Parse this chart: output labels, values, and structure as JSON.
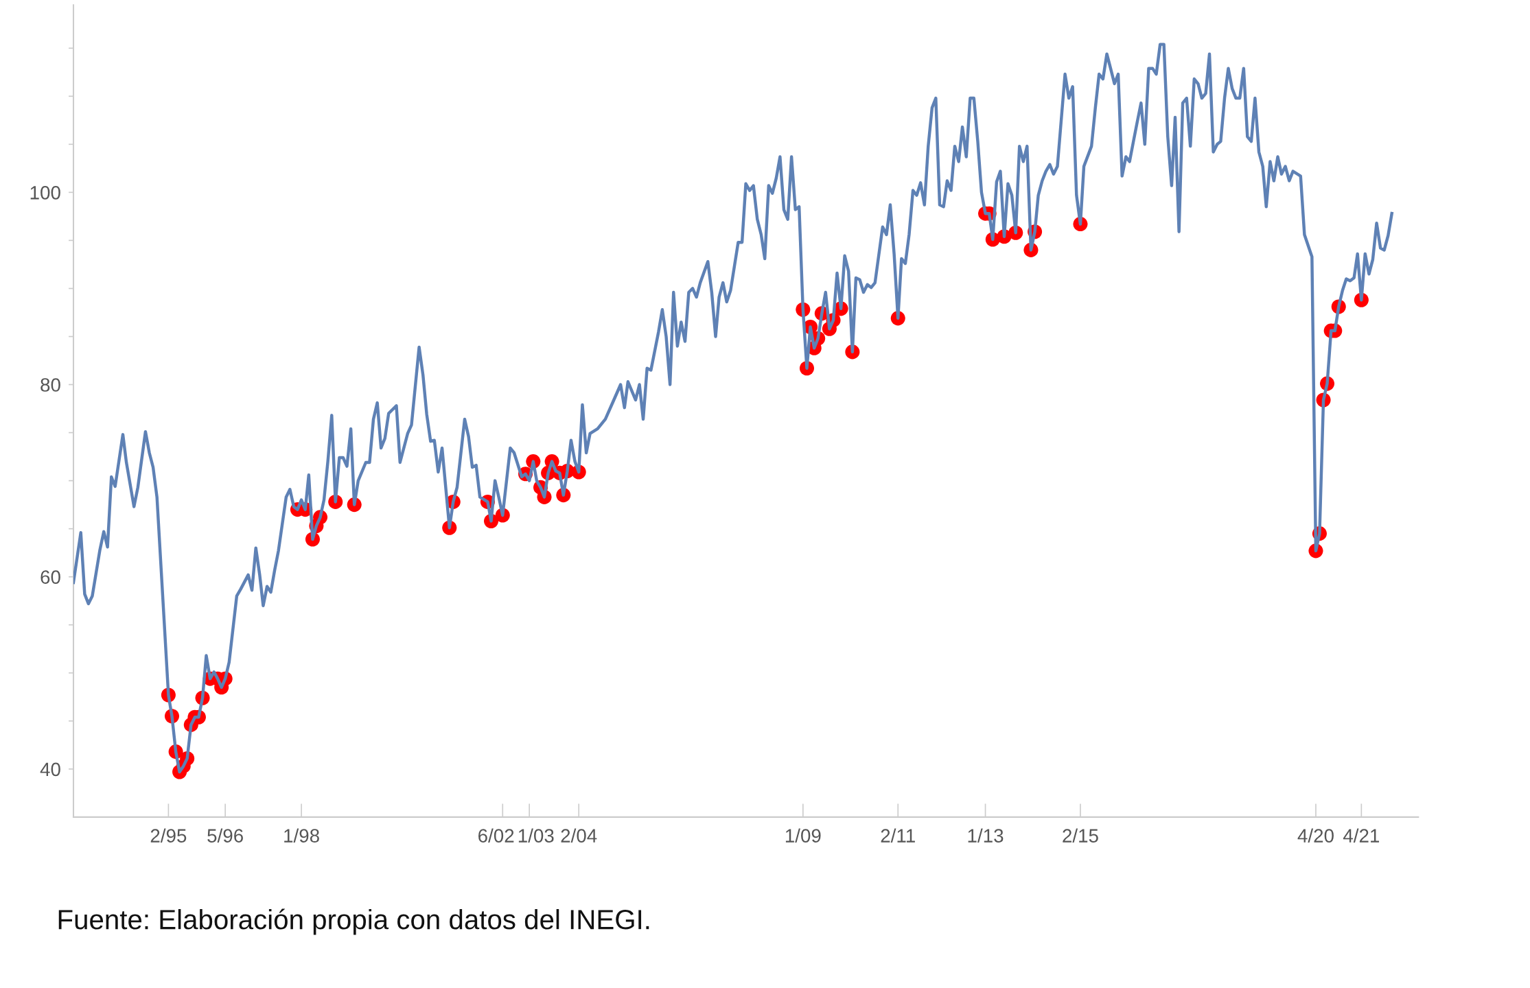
{
  "chart_data": {
    "type": "line",
    "xlim": [
      "1993-01",
      "2022-07"
    ],
    "ylim": [
      35,
      119.5
    ],
    "xticks": [
      {
        "value": "1995-02",
        "label": "2/95"
      },
      {
        "value": "1996-05",
        "label": "5/96"
      },
      {
        "value": "1998-01",
        "label": "1/98"
      },
      {
        "value": "2002-06",
        "label": "6/02"
      },
      {
        "value": "2003-01",
        "label": "1/03"
      },
      {
        "value": "2004-02",
        "label": "2/04"
      },
      {
        "value": "2009-01",
        "label": "1/09"
      },
      {
        "value": "2011-02",
        "label": "2/11"
      },
      {
        "value": "2013-01",
        "label": "1/13"
      },
      {
        "value": "2015-02",
        "label": "2/15"
      },
      {
        "value": "2020-04",
        "label": "4/20"
      },
      {
        "value": "2021-04",
        "label": "4/21"
      }
    ],
    "yticks": [
      40,
      {
        "value": 45,
        "label": null
      },
      {
        "value": 50,
        "label": null
      },
      {
        "value": 55,
        "label": null
      },
      60,
      {
        "value": 65,
        "label": null
      },
      {
        "value": 70,
        "label": null
      },
      {
        "value": 75,
        "label": null
      },
      80,
      {
        "value": 85,
        "label": null
      },
      {
        "value": 90,
        "label": null
      },
      {
        "value": 95,
        "label": null
      },
      100,
      {
        "value": 105,
        "label": null
      },
      {
        "value": 110,
        "label": null
      },
      {
        "value": 115,
        "label": null
      }
    ],
    "grid": false,
    "legend": false,
    "annotations": [
      "Fuente: Elaboración propia con datos del INEGI."
    ],
    "series": [
      {
        "color": "#5e81b5",
        "line_style": "solid",
        "x": [
          "1993-01",
          "1993-03",
          "1993-04",
          "1993-05",
          "1993-06",
          "1993-08",
          "1993-09",
          "1993-10",
          "1993-11",
          "1993-12",
          "1994-02",
          "1994-03",
          "1994-05",
          "1994-06",
          "1994-08",
          "1994-09",
          "1994-10",
          "1994-11",
          "1995-02",
          "1995-03",
          "1995-04",
          "1995-05",
          "1995-06",
          "1995-07",
          "1995-08",
          "1995-09",
          "1995-10",
          "1995-11",
          "1995-12",
          "1996-01",
          "1996-02",
          "1996-03",
          "1996-04",
          "1996-05",
          "1996-06",
          "1996-08",
          "1996-09",
          "1996-11",
          "1996-12",
          "1997-01",
          "1997-02",
          "1997-03",
          "1997-04",
          "1997-05",
          "1997-06",
          "1997-07",
          "1997-09",
          "1997-10",
          "1997-11",
          "1997-12",
          "1998-01",
          "1998-02",
          "1998-03",
          "1998-04",
          "1998-05",
          "1998-06",
          "1998-07",
          "1998-08",
          "1998-09",
          "1998-10",
          "1998-11",
          "1998-12",
          "1999-01",
          "1999-02",
          "1999-03",
          "1999-04",
          "1999-06",
          "1999-07",
          "1999-08",
          "1999-09",
          "1999-10",
          "1999-11",
          "1999-12",
          "2000-02",
          "2000-03",
          "2000-05",
          "2000-06",
          "2000-08",
          "2000-09",
          "2000-10",
          "2000-11",
          "2000-12",
          "2001-01",
          "2001-02",
          "2001-04",
          "2001-05",
          "2001-06",
          "2001-08",
          "2001-09",
          "2001-10",
          "2001-11",
          "2001-12",
          "2002-02",
          "2002-03",
          "2002-04",
          "2002-05",
          "2002-06",
          "2002-08",
          "2002-09",
          "2002-11",
          "2002-12",
          "2003-01",
          "2003-02",
          "2003-03",
          "2003-04",
          "2003-05",
          "2003-06",
          "2003-07",
          "2003-08",
          "2003-09",
          "2003-10",
          "2003-11",
          "2003-12",
          "2004-01",
          "2004-02",
          "2004-03",
          "2004-04",
          "2004-05",
          "2004-07",
          "2004-09",
          "2004-11",
          "2005-01",
          "2005-02",
          "2005-03",
          "2005-05",
          "2005-06",
          "2005-07",
          "2005-08",
          "2005-09",
          "2005-11",
          "2005-12",
          "2006-01",
          "2006-02",
          "2006-03",
          "2006-04",
          "2006-05",
          "2006-06",
          "2006-07",
          "2006-08",
          "2006-09",
          "2006-10",
          "2006-12",
          "2007-01",
          "2007-02",
          "2007-03",
          "2007-04",
          "2007-05",
          "2007-06",
          "2007-08",
          "2007-09",
          "2007-10",
          "2007-11",
          "2007-12",
          "2008-01",
          "2008-02",
          "2008-03",
          "2008-04",
          "2008-05",
          "2008-06",
          "2008-07",
          "2008-08",
          "2008-09",
          "2008-10",
          "2008-11",
          "2008-12",
          "2009-01",
          "2009-02",
          "2009-03",
          "2009-04",
          "2009-05",
          "2009-06",
          "2009-07",
          "2009-08",
          "2009-09",
          "2009-10",
          "2009-11",
          "2009-12",
          "2010-01",
          "2010-02",
          "2010-03",
          "2010-04",
          "2010-05",
          "2010-06",
          "2010-07",
          "2010-08",
          "2010-10",
          "2010-11",
          "2010-12",
          "2011-01",
          "2011-02",
          "2011-03",
          "2011-04",
          "2011-05",
          "2011-06",
          "2011-07",
          "2011-08",
          "2011-09",
          "2011-10",
          "2011-11",
          "2011-12",
          "2012-01",
          "2012-02",
          "2012-03",
          "2012-04",
          "2012-05",
          "2012-06",
          "2012-07",
          "2012-08",
          "2012-09",
          "2012-10",
          "2012-11",
          "2012-12",
          "2013-01",
          "2013-02",
          "2013-03",
          "2013-04",
          "2013-05",
          "2013-06",
          "2013-07",
          "2013-08",
          "2013-09",
          "2013-10",
          "2013-11",
          "2013-12",
          "2014-01",
          "2014-02",
          "2014-03",
          "2014-04",
          "2014-05",
          "2014-06",
          "2014-07",
          "2014-08",
          "2014-10",
          "2014-11",
          "2014-12",
          "2015-01",
          "2015-02",
          "2015-03",
          "2015-05",
          "2015-06",
          "2015-07",
          "2015-08",
          "2015-09",
          "2015-10",
          "2015-11",
          "2015-12",
          "2016-01",
          "2016-02",
          "2016-03",
          "2016-04",
          "2016-05",
          "2016-06",
          "2016-07",
          "2016-08",
          "2016-09",
          "2016-10",
          "2016-11",
          "2016-12",
          "2017-01",
          "2017-02",
          "2017-03",
          "2017-04",
          "2017-05",
          "2017-06",
          "2017-07",
          "2017-08",
          "2017-09",
          "2017-10",
          "2017-11",
          "2017-12",
          "2018-01",
          "2018-02",
          "2018-03",
          "2018-04",
          "2018-05",
          "2018-06",
          "2018-07",
          "2018-08",
          "2018-09",
          "2018-10",
          "2018-11",
          "2018-12",
          "2019-01",
          "2019-02",
          "2019-03",
          "2019-04",
          "2019-05",
          "2019-06",
          "2019-07",
          "2019-08",
          "2019-09",
          "2019-10",
          "2019-12",
          "2020-01",
          "2020-03",
          "2020-04",
          "2020-05",
          "2020-06",
          "2020-07",
          "2020-08",
          "2020-09",
          "2020-10",
          "2020-11",
          "2020-12",
          "2021-01",
          "2021-02",
          "2021-03",
          "2021-04",
          "2021-05",
          "2021-06",
          "2021-07",
          "2021-08",
          "2021-09",
          "2021-10",
          "2021-11",
          "2021-12"
        ],
        "values": [
          59.4,
          64.6,
          58.2,
          57.2,
          58.0,
          62.8,
          64.7,
          63.1,
          70.4,
          69.4,
          74.8,
          71.9,
          67.3,
          69.3,
          75.1,
          72.9,
          71.4,
          68.3,
          47.7,
          45.5,
          41.8,
          39.7,
          40.3,
          41.1,
          44.6,
          45.4,
          45.4,
          47.4,
          51.8,
          49.4,
          50.1,
          49.4,
          48.5,
          49.4,
          51.1,
          58.0,
          58.7,
          60.2,
          58.6,
          63.0,
          60.2,
          57.0,
          59.0,
          58.4,
          60.7,
          62.7,
          68.3,
          69.1,
          67.3,
          67.0,
          68.0,
          67.0,
          70.6,
          63.9,
          65.3,
          66.2,
          68.0,
          72.0,
          76.8,
          67.8,
          72.4,
          72.4,
          71.5,
          75.4,
          67.5,
          70.0,
          71.9,
          71.9,
          76.4,
          78.1,
          73.4,
          74.4,
          77.0,
          77.8,
          71.9,
          74.9,
          75.8,
          83.9,
          81.0,
          76.9,
          74.1,
          74.2,
          70.9,
          73.4,
          65.1,
          67.8,
          69.3,
          76.4,
          74.6,
          71.4,
          71.6,
          68.3,
          67.8,
          65.8,
          70.0,
          68.3,
          66.4,
          73.4,
          72.9,
          70.4,
          70.7,
          70.0,
          72.0,
          70.0,
          69.3,
          68.3,
          70.8,
          72.0,
          71.0,
          70.8,
          68.5,
          71.0,
          74.2,
          72.0,
          70.9,
          77.9,
          72.9,
          74.9,
          75.4,
          76.4,
          78.2,
          80.0,
          77.6,
          80.3,
          78.4,
          80.0,
          76.4,
          81.7,
          81.5,
          85.5,
          87.8,
          85.0,
          80.0,
          89.6,
          84.0,
          86.5,
          84.5,
          89.6,
          90.0,
          89.1,
          90.6,
          92.8,
          89.6,
          85.0,
          89.1,
          90.6,
          88.6,
          89.8,
          94.8,
          94.8,
          100.9,
          100.2,
          100.7,
          97.2,
          95.6,
          93.1,
          100.7,
          99.9,
          101.5,
          103.7,
          98.2,
          97.2,
          103.7,
          98.2,
          98.5,
          87.8,
          81.7,
          86.0,
          83.8,
          84.8,
          87.4,
          89.6,
          85.8,
          86.7,
          91.6,
          87.9,
          93.4,
          91.8,
          83.4,
          91.1,
          90.9,
          89.6,
          90.4,
          90.1,
          90.6,
          96.4,
          95.6,
          98.7,
          93.6,
          86.9,
          93.1,
          92.6,
          95.6,
          100.2,
          99.7,
          101.0,
          98.7,
          104.8,
          108.8,
          109.8,
          98.7,
          98.5,
          101.2,
          100.2,
          104.8,
          103.2,
          106.8,
          103.7,
          109.8,
          109.8,
          105.3,
          100.0,
          97.8,
          97.8,
          95.1,
          101.1,
          102.2,
          95.4,
          100.9,
          99.7,
          95.8,
          104.8,
          103.2,
          104.8,
          94.0,
          95.9,
          99.7,
          101.2,
          102.2,
          102.9,
          101.9,
          102.7,
          112.3,
          109.8,
          111.0,
          99.7,
          96.7,
          102.7,
          104.8,
          108.8,
          112.3,
          111.8,
          114.4,
          112.9,
          111.3,
          112.3,
          101.7,
          103.7,
          103.2,
          105.3,
          107.3,
          109.3,
          105.0,
          112.9,
          112.9,
          112.3,
          115.4,
          115.4,
          105.8,
          100.7,
          107.8,
          95.9,
          109.3,
          109.8,
          104.8,
          111.8,
          111.3,
          109.8,
          110.3,
          114.4,
          104.2,
          105.0,
          105.3,
          109.8,
          112.9,
          110.8,
          109.8,
          109.8,
          112.9,
          105.8,
          105.3,
          109.8,
          104.2,
          102.7,
          98.5,
          103.2,
          101.2,
          103.7,
          101.9,
          102.7,
          101.2,
          102.2,
          101.7,
          95.6,
          93.3,
          62.7,
          64.5,
          78.4,
          80.1,
          85.6,
          85.6,
          88.1,
          89.8,
          91.0,
          90.8,
          91.1,
          93.6,
          88.8,
          93.6,
          91.5,
          93.0,
          96.8,
          94.2,
          94.0,
          95.5,
          97.8
        ]
      },
      {
        "type": "scatter",
        "color": "#ff0000",
        "marker": "circle",
        "x": [
          "1995-02",
          "1995-03",
          "1995-04",
          "1995-05",
          "1995-06",
          "1995-07",
          "1995-08",
          "1995-09",
          "1995-10",
          "1995-11",
          "1996-01",
          "1996-03",
          "1996-04",
          "1996-05",
          "1997-12",
          "1998-02",
          "1998-04",
          "1998-05",
          "1998-06",
          "1998-10",
          "1999-03",
          "2001-04",
          "2001-05",
          "2002-02",
          "2002-03",
          "2002-06",
          "2002-12",
          "2003-02",
          "2003-04",
          "2003-05",
          "2003-06",
          "2003-07",
          "2003-09",
          "2003-10",
          "2003-11",
          "2004-02",
          "2009-01",
          "2009-02",
          "2009-03",
          "2009-04",
          "2009-05",
          "2009-06",
          "2009-08",
          "2009-09",
          "2009-11",
          "2010-02",
          "2011-02",
          "2013-01",
          "2013-02",
          "2013-03",
          "2013-06",
          "2013-09",
          "2014-01",
          "2014-02",
          "2015-02",
          "2020-04",
          "2020-05",
          "2020-06",
          "2020-07",
          "2020-08",
          "2020-09",
          "2020-10",
          "2021-04"
        ],
        "values": [
          47.7,
          45.5,
          41.8,
          39.7,
          40.3,
          41.1,
          44.6,
          45.4,
          45.4,
          47.4,
          49.4,
          49.4,
          48.5,
          49.4,
          67.0,
          67.0,
          63.9,
          65.3,
          66.2,
          67.8,
          67.5,
          65.1,
          67.8,
          67.8,
          65.8,
          66.4,
          70.7,
          72.0,
          69.3,
          68.3,
          70.8,
          72.0,
          70.8,
          68.5,
          71.0,
          70.9,
          87.8,
          81.7,
          86.0,
          83.8,
          84.8,
          87.4,
          85.8,
          86.7,
          87.9,
          83.4,
          86.9,
          97.8,
          97.8,
          95.1,
          95.4,
          95.8,
          94.0,
          95.9,
          96.7,
          62.7,
          64.5,
          78.4,
          80.1,
          85.6,
          85.6,
          88.1,
          88.8
        ]
      }
    ]
  }
}
